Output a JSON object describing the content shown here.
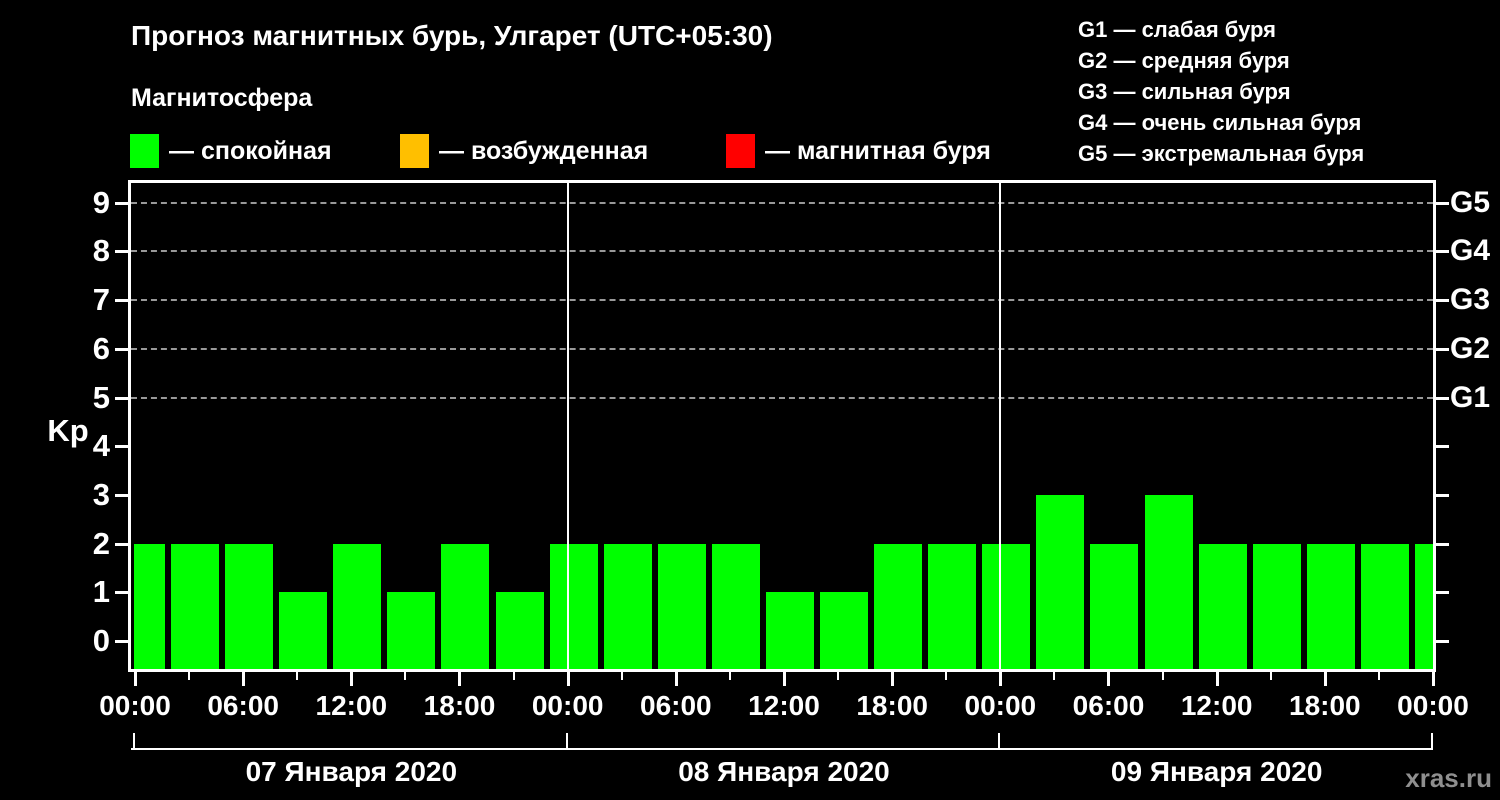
{
  "title": "Прогноз магнитных бурь, Улгарет (UTC+05:30)",
  "subtitle": "Магнитосфера",
  "activity_legend": [
    {
      "id": "quiet",
      "label": "— спокойная",
      "color": "#00ff00"
    },
    {
      "id": "excited",
      "label": "— возбужденная",
      "color": "#ffbf00"
    },
    {
      "id": "storm",
      "label": "— магнитная буря",
      "color": "#ff0000"
    }
  ],
  "storm_scale": [
    "G1 — слабая буря",
    "G2 — средняя буря",
    "G3 — сильная буря",
    "G4 — очень сильная буря",
    "G5 — экстремальная буря"
  ],
  "watermark": "xras.ru",
  "colors": {
    "background": "#000000",
    "axis": "#ffffff",
    "grid": "#999999",
    "bar": "#00ff00",
    "watermark": "#8f8f8f"
  },
  "chart_data": {
    "type": "bar",
    "title": "Прогноз магнитных бурь, Улгарет (UTC+05:30)",
    "ylabel": "Kp",
    "ylim": [
      0,
      9
    ],
    "y_ticks": [
      0,
      1,
      2,
      3,
      4,
      5,
      6,
      7,
      8,
      9
    ],
    "grid_at_kp": [
      5,
      6,
      7,
      8,
      9
    ],
    "bar_interval_hours": 3,
    "x_major_tick_labels": [
      "00:00",
      "06:00",
      "12:00",
      "18:00",
      "00:00",
      "06:00",
      "12:00",
      "18:00",
      "00:00",
      "06:00",
      "12:00",
      "18:00",
      "00:00"
    ],
    "right_axis_labels": [
      {
        "kp": 5,
        "label": "G1"
      },
      {
        "kp": 6,
        "label": "G2"
      },
      {
        "kp": 7,
        "label": "G3"
      },
      {
        "kp": 8,
        "label": "G4"
      },
      {
        "kp": 9,
        "label": "G5"
      }
    ],
    "days": [
      {
        "date": "07 Января 2020",
        "kp_3h": [
          2,
          2,
          2,
          1,
          2,
          1,
          2,
          1
        ]
      },
      {
        "date": "08 Января 2020",
        "kp_3h": [
          2,
          2,
          2,
          2,
          1,
          1,
          2,
          2
        ]
      },
      {
        "date": "09 Января 2020",
        "kp_3h": [
          2,
          3,
          2,
          3,
          2,
          2,
          2,
          2
        ]
      }
    ],
    "final_point_kp": 2,
    "bar_color": "#00ff00",
    "grid": true,
    "legend_position": "top"
  }
}
